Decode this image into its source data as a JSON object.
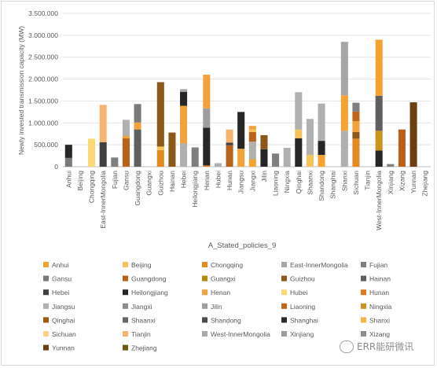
{
  "chart_data": {
    "type": "bar",
    "stacked": true,
    "title": "",
    "xlabel": "A_Stated_policies_9",
    "ylabel": "Newly invested transmission capacity (MW)",
    "ylim": [
      0,
      3500000
    ],
    "yticks": [
      "0",
      "500.000",
      "1.000.000",
      "1.500.000",
      "2.000.000",
      "2.500.000",
      "3.000.000",
      "3.500.000"
    ],
    "ytick_values": [
      0,
      500000,
      1000000,
      1500000,
      2000000,
      2500000,
      3000000,
      3500000
    ],
    "grid": true,
    "legend_position": "bottom",
    "categories": [
      "Anhui",
      "Beijing",
      "Chongqing",
      "East-InnerMongolia",
      "Fujian",
      "Gansu",
      "Guangdong",
      "Guangxi",
      "Guizhou",
      "Hainan",
      "Hebei",
      "Heilongjiang",
      "Henan",
      "Hubei",
      "Hunan",
      "Jiangsu",
      "Jiangxi",
      "Jilin",
      "Liaoning",
      "Ningxia",
      "Qinghai",
      "Shaanxi",
      "Shandong",
      "Shanghai",
      "Shanxi",
      "Sichuan",
      "Tianjin",
      "West-InnerMongolia",
      "Xinjiang",
      "Xizang",
      "Yunnan",
      "Zhejiang"
    ],
    "series": [
      {
        "name": "Anhui",
        "color": "#f4a330"
      },
      {
        "name": "Beijing",
        "color": "#f7c25a"
      },
      {
        "name": "Chongqing",
        "color": "#e58a1f"
      },
      {
        "name": "East-InnerMongolia",
        "color": "#a6a6a6"
      },
      {
        "name": "Fujian",
        "color": "#7f7f7f"
      },
      {
        "name": "Gansu",
        "color": "#7a7a7a"
      },
      {
        "name": "Guangdong",
        "color": "#b8621b"
      },
      {
        "name": "Guangxi",
        "color": "#b8860b"
      },
      {
        "name": "Guizhou",
        "color": "#8b5a1a"
      },
      {
        "name": "Hainan",
        "color": "#5f5f5f"
      },
      {
        "name": "Hebei",
        "color": "#404040"
      },
      {
        "name": "Heilongjiang",
        "color": "#262626"
      },
      {
        "name": "Henan",
        "color": "#f2a23a"
      },
      {
        "name": "Hubei",
        "color": "#fbd974"
      },
      {
        "name": "Hunan",
        "color": "#e07a1f"
      },
      {
        "name": "Jiangsu",
        "color": "#b0b0b0"
      },
      {
        "name": "Jiangxi",
        "color": "#8c8c8c"
      },
      {
        "name": "Jilin",
        "color": "#9e9e9e"
      },
      {
        "name": "Liaoning",
        "color": "#c0661c"
      },
      {
        "name": "Ningxia",
        "color": "#c9951e"
      },
      {
        "name": "Qinghai",
        "color": "#9a5a12"
      },
      {
        "name": "Shaanxi",
        "color": "#666666"
      },
      {
        "name": "Shandong",
        "color": "#4d4d4d"
      },
      {
        "name": "Shanghai",
        "color": "#2b2b2b"
      },
      {
        "name": "Shanxi",
        "color": "#f6b44a"
      },
      {
        "name": "Sichuan",
        "color": "#fdd08a"
      },
      {
        "name": "Tianjin",
        "color": "#f5b570"
      },
      {
        "name": "West-InnerMongolia",
        "color": "#a9a9a9"
      },
      {
        "name": "Xinjiang",
        "color": "#9c9c9c"
      },
      {
        "name": "Xizang",
        "color": "#8f8f8f"
      },
      {
        "name": "Yunnan",
        "color": "#6b3f10"
      },
      {
        "name": "Zhejiang",
        "color": "#6e5a14"
      }
    ],
    "stacks": [
      [
        {
          "s": "Gansu",
          "v": 200000
        },
        {
          "s": "Heilongjiang",
          "v": 300000
        }
      ],
      [],
      [
        {
          "s": "Hubei",
          "v": 640000
        }
      ],
      [
        {
          "s": "Hebei",
          "v": 560000
        },
        {
          "s": "Tianjin",
          "v": 850000
        }
      ],
      [
        {
          "s": "Fujian",
          "v": 210000
        }
      ],
      [
        {
          "s": "Guangdong",
          "v": 650000
        },
        {
          "s": "Anhui",
          "v": 50000
        },
        {
          "s": "Jiangsu",
          "v": 370000
        }
      ],
      [
        {
          "s": "Hainan",
          "v": 850000
        },
        {
          "s": "Henan",
          "v": 160000
        },
        {
          "s": "Gansu",
          "v": 420000
        }
      ],
      [],
      [
        {
          "s": "Chongqing",
          "v": 380000
        },
        {
          "s": "Beijing",
          "v": 80000
        },
        {
          "s": "Guizhou",
          "v": 1470000
        }
      ],
      [
        {
          "s": "Guizhou",
          "v": 780000
        }
      ],
      [
        {
          "s": "Jiangsu",
          "v": 530000
        },
        {
          "s": "Henan",
          "v": 860000
        },
        {
          "s": "Heilongjiang",
          "v": 320000
        },
        {
          "s": "East-InnerMongolia",
          "v": 60000
        }
      ],
      [
        {
          "s": "Fujian",
          "v": 440000
        }
      ],
      [
        {
          "s": "Hunan",
          "v": 30000
        },
        {
          "s": "Heilongjiang",
          "v": 860000
        },
        {
          "s": "Jilin",
          "v": 440000
        },
        {
          "s": "Henan",
          "v": 770000
        }
      ],
      [
        {
          "s": "Jiangsu",
          "v": 80000
        }
      ],
      [
        {
          "s": "Guangdong",
          "v": 490000
        },
        {
          "s": "Hebei",
          "v": 60000
        },
        {
          "s": "Tianjin",
          "v": 300000
        }
      ],
      [
        {
          "s": "Henan",
          "v": 410000
        },
        {
          "s": "Heilongjiang",
          "v": 840000
        }
      ],
      [
        {
          "s": "Anhui",
          "v": 170000
        },
        {
          "s": "Jiangsu",
          "v": 400000
        },
        {
          "s": "Guangdong",
          "v": 220000
        },
        {
          "s": "Beijing",
          "v": 60000
        },
        {
          "s": "Henan",
          "v": 80000
        }
      ],
      [
        {
          "s": "Heilongjiang",
          "v": 400000
        },
        {
          "s": "Guizhou",
          "v": 320000
        }
      ],
      [
        {
          "s": "Fujian",
          "v": 300000
        }
      ],
      [
        {
          "s": "Jiangsu",
          "v": 430000
        }
      ],
      [
        {
          "s": "Heilongjiang",
          "v": 650000
        },
        {
          "s": "Beijing",
          "v": 200000
        },
        {
          "s": "Jiangsu",
          "v": 850000
        }
      ],
      [
        {
          "s": "Beijing",
          "v": 270000
        },
        {
          "s": "Jiangsu",
          "v": 820000
        }
      ],
      [
        {
          "s": "Anhui",
          "v": 270000
        },
        {
          "s": "Heilongjiang",
          "v": 320000
        },
        {
          "s": "Jiangsu",
          "v": 850000
        }
      ],
      [],
      [
        {
          "s": "Jiangsu",
          "v": 820000
        },
        {
          "s": "Anhui",
          "v": 810000
        },
        {
          "s": "East-InnerMongolia",
          "v": 1220000
        }
      ],
      [
        {
          "s": "Chongqing",
          "v": 640000
        },
        {
          "s": "Guizhou",
          "v": 150000
        },
        {
          "s": "Henan",
          "v": 250000
        },
        {
          "s": "Liaoning",
          "v": 220000
        },
        {
          "s": "Fujian",
          "v": 200000
        }
      ],
      [],
      [
        {
          "s": "Heilongjiang",
          "v": 370000
        },
        {
          "s": "Ningxia",
          "v": 450000
        },
        {
          "s": "Hainan",
          "v": 800000
        },
        {
          "s": "Anhui",
          "v": 1280000
        }
      ],
      [
        {
          "s": "Fujian",
          "v": 60000
        }
      ],
      [
        {
          "s": "Guangdong",
          "v": 850000
        }
      ],
      [
        {
          "s": "Yunnan",
          "v": 1470000
        }
      ],
      []
    ]
  },
  "legend": [
    {
      "label": "Anhui",
      "color": "#f4a330"
    },
    {
      "label": "Beijing",
      "color": "#f7c25a"
    },
    {
      "label": "Chongqing",
      "color": "#e58a1f"
    },
    {
      "label": "East-InnerMongolia",
      "color": "#a6a6a6"
    },
    {
      "label": "Fujian",
      "color": "#7f7f7f"
    },
    {
      "label": "Gansu",
      "color": "#7a7a7a"
    },
    {
      "label": "Guangdong",
      "color": "#b8621b"
    },
    {
      "label": "Guangxi",
      "color": "#b8860b"
    },
    {
      "label": "Guizhou",
      "color": "#8b5a1a"
    },
    {
      "label": "Hainan",
      "color": "#5f5f5f"
    },
    {
      "label": "Hebei",
      "color": "#404040"
    },
    {
      "label": "Heilongjiang",
      "color": "#262626"
    },
    {
      "label": "Henan",
      "color": "#f2a23a"
    },
    {
      "label": "Hubei",
      "color": "#fbd974"
    },
    {
      "label": "Hunan",
      "color": "#e07a1f"
    },
    {
      "label": "Jiangsu",
      "color": "#b0b0b0"
    },
    {
      "label": "Jiangxi",
      "color": "#8c8c8c"
    },
    {
      "label": "Jilin",
      "color": "#9e9e9e"
    },
    {
      "label": "Liaoning",
      "color": "#c0661c"
    },
    {
      "label": "Ningxia",
      "color": "#c9951e"
    },
    {
      "label": "Qinghai",
      "color": "#9a5a12"
    },
    {
      "label": "Shaanxi",
      "color": "#666666"
    },
    {
      "label": "Shandong",
      "color": "#4d4d4d"
    },
    {
      "label": "Shanghai",
      "color": "#2b2b2b"
    },
    {
      "label": "Shanxi",
      "color": "#f6b44a"
    },
    {
      "label": "Sichuan",
      "color": "#fdd08a"
    },
    {
      "label": "Tianjin",
      "color": "#f5b570"
    },
    {
      "label": "West-InnerMongolia",
      "color": "#a9a9a9"
    },
    {
      "label": "Xinjiang",
      "color": "#9c9c9c"
    },
    {
      "label": "Xizang",
      "color": "#8f8f8f"
    },
    {
      "label": "Yunnan",
      "color": "#6b3f10"
    },
    {
      "label": "Zhejiang",
      "color": "#6e5a14"
    }
  ],
  "watermark": {
    "text": "ERR能研微讯",
    "icon": "wechat-icon"
  }
}
